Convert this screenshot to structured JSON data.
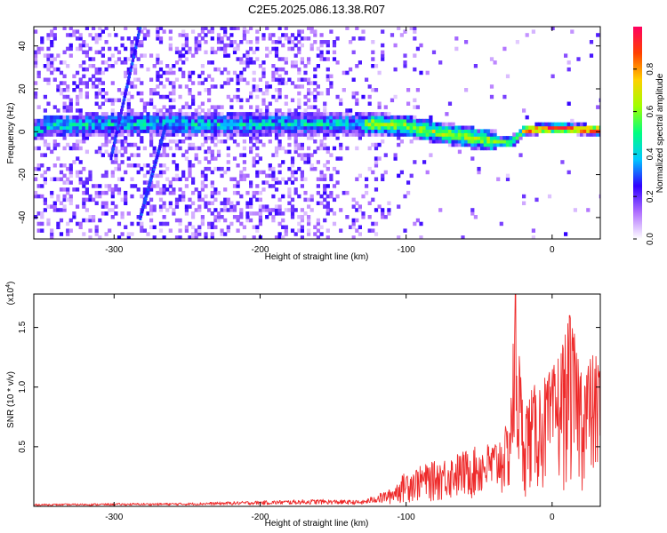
{
  "title": "C2E5.2025.086.13.38.R07",
  "chart_data": [
    {
      "type": "heatmap",
      "xlabel": "Height of straight line (km)",
      "ylabel": "Frequency (Hz)",
      "xlim": [
        -355,
        33
      ],
      "ylim": [
        -50,
        49
      ],
      "xticks": [
        -300,
        -200,
        -100,
        0
      ],
      "yticks": [
        -40,
        -20,
        0,
        20,
        40
      ],
      "colorbar": {
        "label": "Normalized spectral amplitude",
        "range": [
          0,
          1
        ],
        "ticks": [
          0.0,
          0.2,
          0.4,
          0.6,
          0.8
        ],
        "tick_labels": [
          "0.0",
          "0.2",
          "0.4",
          "0.6",
          "0.8"
        ],
        "colormap": [
          "#ffffff",
          "#b070ff",
          "#3000ff",
          "#00c8ff",
          "#00ff80",
          "#a0ff00",
          "#ffd000",
          "#ff4000",
          "#ff0060"
        ]
      },
      "ridge_center_hz": [
        {
          "x": -350,
          "y": 2
        },
        {
          "x": -300,
          "y": 3
        },
        {
          "x": -200,
          "y": 3
        },
        {
          "x": -150,
          "y": 3
        },
        {
          "x": -120,
          "y": 3
        },
        {
          "x": -100,
          "y": 2
        },
        {
          "x": -80,
          "y": -1
        },
        {
          "x": -60,
          "y": -3
        },
        {
          "x": -40,
          "y": -5
        },
        {
          "x": -30,
          "y": -6
        },
        {
          "x": -20,
          "y": 0
        },
        {
          "x": 0,
          "y": 1
        },
        {
          "x": 33,
          "y": 0
        }
      ],
      "features": [
        {
          "name": "diagonal streak A",
          "from": {
            "x": -302,
            "y": -12
          },
          "to": {
            "x": -282,
            "y": 49
          }
        },
        {
          "name": "diagonal streak B",
          "from": {
            "x": -282,
            "y": -40
          },
          "to": {
            "x": -265,
            "y": 2
          }
        }
      ],
      "peak_amplitude_region_km": [
        -30,
        33
      ]
    },
    {
      "type": "line",
      "xlabel": "Height of straight line (km)",
      "ylabel": "SNR (10 * v/v)",
      "y_multiplier_label": "(x10",
      "y_multiplier_exponent": "4",
      "xlim": [
        -355,
        33
      ],
      "ylim": [
        0,
        17800
      ],
      "xticks": [
        -300,
        -200,
        -100,
        0
      ],
      "yticks": [
        5000,
        10000,
        15000
      ],
      "ytick_labels": [
        "0.5",
        "1.0",
        "1.5"
      ],
      "series": [
        {
          "color": "#ee2a2a",
          "envelope": [
            {
              "x": -355,
              "y": 200
            },
            {
              "x": -250,
              "y": 300
            },
            {
              "x": -160,
              "y": 600
            },
            {
              "x": -130,
              "y": 500
            },
            {
              "x": -110,
              "y": 1500
            },
            {
              "x": -100,
              "y": 3000
            },
            {
              "x": -80,
              "y": 3800
            },
            {
              "x": -60,
              "y": 4700
            },
            {
              "x": -40,
              "y": 5500
            },
            {
              "x": -30,
              "y": 7000
            },
            {
              "x": -25,
              "y": 17800
            },
            {
              "x": -20,
              "y": 9000
            },
            {
              "x": -10,
              "y": 10500
            },
            {
              "x": 0,
              "y": 11500
            },
            {
              "x": 12,
              "y": 16000
            },
            {
              "x": 20,
              "y": 12500
            },
            {
              "x": 33,
              "y": 13000
            }
          ]
        }
      ]
    }
  ]
}
